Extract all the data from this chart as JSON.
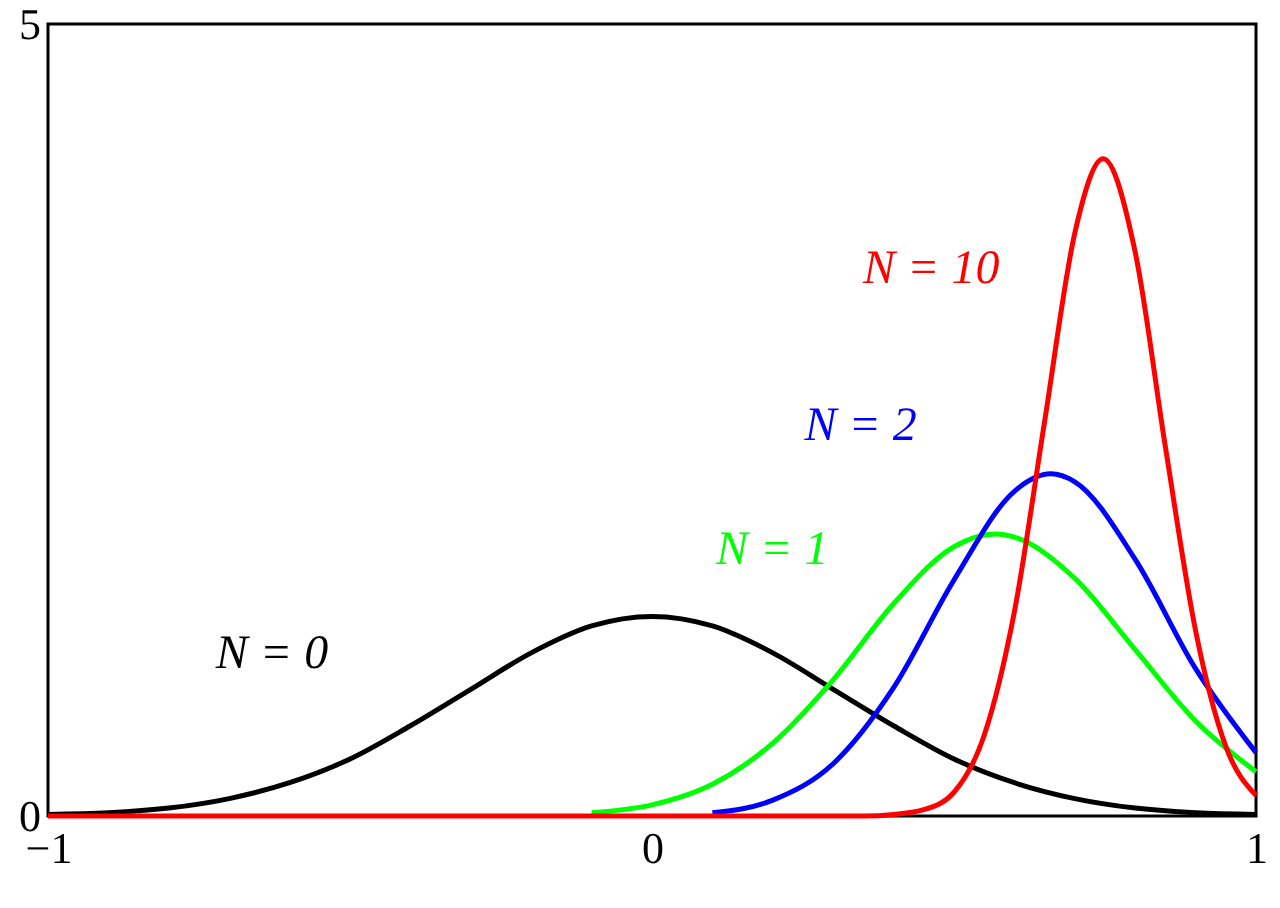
{
  "chart_data": {
    "type": "line",
    "xlim": [
      -1,
      1
    ],
    "xticks": [
      {
        "value": -1,
        "label": "−1"
      },
      {
        "value": 0,
        "label": "0"
      },
      {
        "value": 1,
        "label": "1"
      }
    ],
    "ylim": [
      0,
      5
    ],
    "yticks": [
      {
        "value": 0,
        "label": "0"
      },
      {
        "value": 5,
        "label": "5"
      }
    ],
    "grid": false,
    "marker": "none",
    "line_style": "solid",
    "series": [
      {
        "name": "N = 0",
        "color": "#000000",
        "x": [
          -1,
          -0.9,
          -0.8,
          -0.7,
          -0.6,
          -0.5,
          -0.4,
          -0.3,
          -0.2,
          -0.1,
          0,
          0.1,
          0.2,
          0.3,
          0.4,
          0.5,
          0.6,
          0.7,
          0.8,
          0.9,
          1
        ],
        "values": [
          0.01,
          0.02,
          0.05,
          0.11,
          0.21,
          0.36,
          0.57,
          0.8,
          1.03,
          1.2,
          1.26,
          1.2,
          1.03,
          0.8,
          0.57,
          0.36,
          0.21,
          0.11,
          0.05,
          0.02,
          0.01
        ]
      },
      {
        "name": "N = 1",
        "color": "#00ff00",
        "x": [
          -0.1,
          0,
          0.1,
          0.2,
          0.3,
          0.4,
          0.5,
          0.57,
          0.6,
          0.7,
          0.8,
          0.9,
          1
        ],
        "values": [
          0.02,
          0.07,
          0.2,
          0.46,
          0.86,
          1.34,
          1.7,
          1.78,
          1.76,
          1.5,
          1.05,
          0.6,
          0.28
        ]
      },
      {
        "name": "N = 2",
        "color": "#0000ff",
        "x": [
          0.1,
          0.2,
          0.3,
          0.4,
          0.5,
          0.6,
          0.66,
          0.7,
          0.8,
          0.9,
          1
        ],
        "values": [
          0.02,
          0.1,
          0.33,
          0.81,
          1.49,
          2.05,
          2.16,
          2.11,
          1.62,
          0.93,
          0.4
        ]
      },
      {
        "name": "N = 10",
        "color": "#ff0000",
        "x": [
          -1,
          0.3,
          0.35,
          0.4,
          0.45,
          0.5,
          0.55,
          0.6,
          0.65,
          0.7,
          0.747,
          0.8,
          0.85,
          0.9,
          0.95,
          1
        ],
        "values": [
          0,
          0,
          0,
          0.01,
          0.04,
          0.15,
          0.51,
          1.29,
          2.49,
          3.68,
          4.15,
          3.56,
          2.33,
          1.17,
          0.44,
          0.13
        ]
      }
    ]
  }
}
